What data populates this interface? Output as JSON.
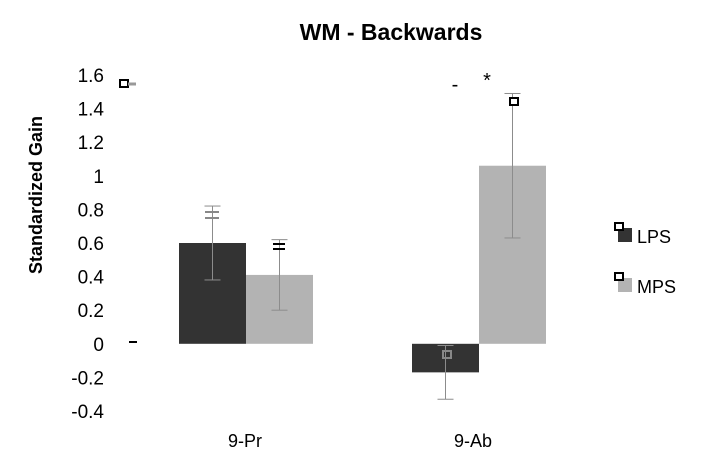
{
  "chart_data": {
    "type": "bar",
    "title": "WM - Backwards",
    "ylabel": "Standardized Gain",
    "xlabel": "",
    "ylim": [
      -0.4,
      1.6
    ],
    "yticks": [
      "1.6",
      "1.4",
      "1.2",
      "1",
      "0.8",
      "0.6",
      "0.4",
      "0.2",
      "0",
      "-0.2",
      "-0.4"
    ],
    "ytick_values": [
      1.6,
      1.4,
      1.2,
      1.0,
      0.8,
      0.6,
      0.4,
      0.2,
      0.0,
      -0.2,
      -0.4
    ],
    "categories": [
      "9-Pr",
      "9-Ab"
    ],
    "series": [
      {
        "name": "LPS",
        "values": [
          0.6,
          -0.17
        ],
        "errors": [
          0.22,
          0.16
        ],
        "color": "#333333"
      },
      {
        "name": "MPS",
        "values": [
          0.41,
          1.06
        ],
        "errors": [
          0.21,
          0.43
        ],
        "color": "#b3b3b3"
      }
    ],
    "annotations": [
      "-",
      "*"
    ],
    "legend_position": "right",
    "grid": false
  }
}
